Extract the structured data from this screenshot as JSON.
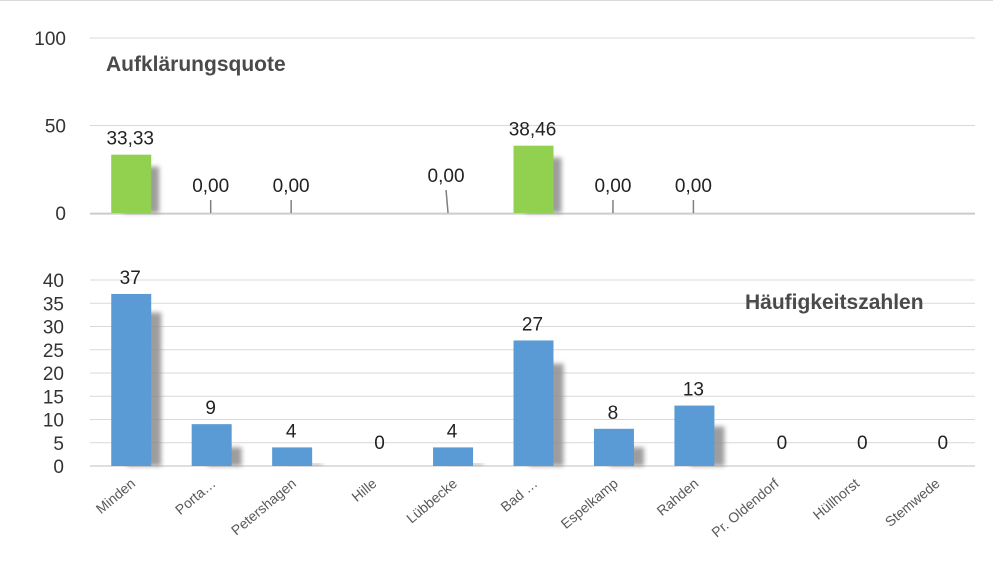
{
  "chart_data": [
    {
      "type": "bar",
      "title": "Aufklärungsquote",
      "categories": [
        "Minden",
        "Porta…",
        "Petershagen",
        "Hille",
        "Lübbecke",
        "Bad …",
        "Espelkamp",
        "Rahden",
        "Pr. Oldendorf",
        "Hüllhorst",
        "Stemwede"
      ],
      "values": [
        33.33,
        0.0,
        0.0,
        null,
        0.0,
        38.46,
        0.0,
        0.0,
        null,
        null,
        null
      ],
      "data_labels": [
        "33,33",
        "0,00",
        "0,00",
        "",
        "0,00",
        "38,46",
        "0,00",
        "0,00",
        "",
        "",
        ""
      ],
      "yticks": [
        "0",
        "50",
        "100"
      ],
      "ylim": [
        0,
        100
      ],
      "grid": true,
      "colors": {
        "bar": "#92d050",
        "shadow": "#8c8c8c",
        "grid": "#d9d9d9",
        "leader": "#808080"
      }
    },
    {
      "type": "bar",
      "title": "Häufigkeitszahlen",
      "categories": [
        "Minden",
        "Porta…",
        "Petershagen",
        "Hille",
        "Lübbecke",
        "Bad …",
        "Espelkamp",
        "Rahden",
        "Pr. Oldendorf",
        "Hüllhorst",
        "Stemwede"
      ],
      "values": [
        37,
        9,
        4,
        0,
        4,
        27,
        8,
        13,
        0,
        0,
        0
      ],
      "data_labels": [
        "37",
        "9",
        "4",
        "0",
        "4",
        "27",
        "8",
        "13",
        "0",
        "0",
        "0"
      ],
      "shadow_values": [
        33,
        4,
        0.5,
        0,
        0.5,
        22,
        4,
        8.5,
        0,
        0,
        0
      ],
      "yticks": [
        "0",
        "5",
        "10",
        "15",
        "20",
        "25",
        "30",
        "35",
        "40"
      ],
      "ylim": [
        0,
        40
      ],
      "grid": true,
      "colors": {
        "bar": "#5b9bd5",
        "shadow": "#8c8c8c",
        "grid": "#d9d9d9"
      }
    }
  ]
}
